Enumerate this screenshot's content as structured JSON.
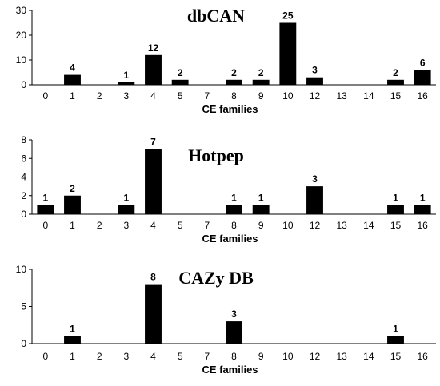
{
  "chart_data": [
    {
      "type": "bar",
      "title": "dbCAN",
      "xlabel": "CE families",
      "ylabel": "",
      "categories": [
        "0",
        "1",
        "2",
        "3",
        "4",
        "5",
        "7",
        "8",
        "9",
        "10",
        "12",
        "13",
        "14",
        "15",
        "16"
      ],
      "values": [
        0,
        4,
        0,
        1,
        12,
        2,
        0,
        2,
        2,
        25,
        3,
        0,
        0,
        2,
        6
      ],
      "data_labels": [
        "",
        "4",
        "",
        "1",
        "12",
        "2",
        "",
        "2",
        "2",
        "25",
        "3",
        "",
        "",
        "2",
        "6"
      ],
      "yticks": [
        "0",
        "10",
        "20",
        "30"
      ],
      "ylim": [
        0,
        30
      ],
      "bar_color": "#000000",
      "grid": false,
      "legend": "none"
    },
    {
      "type": "bar",
      "title": "Hotpep",
      "xlabel": "CE families",
      "ylabel": "",
      "categories": [
        "0",
        "1",
        "2",
        "3",
        "4",
        "5",
        "7",
        "8",
        "9",
        "10",
        "12",
        "13",
        "14",
        "15",
        "16"
      ],
      "values": [
        1,
        2,
        0,
        1,
        7,
        0,
        0,
        1,
        1,
        0,
        3,
        0,
        0,
        1,
        1
      ],
      "data_labels": [
        "1",
        "2",
        "",
        "1",
        "7",
        "",
        "",
        "1",
        "1",
        "",
        "3",
        "",
        "",
        "1",
        "1"
      ],
      "yticks": [
        "0",
        "2",
        "4",
        "6",
        "8"
      ],
      "ylim": [
        0,
        8
      ],
      "bar_color": "#000000",
      "grid": false,
      "legend": "none"
    },
    {
      "type": "bar",
      "title": "CAZy DB",
      "xlabel": "CE families",
      "ylabel": "",
      "categories": [
        "0",
        "1",
        "2",
        "3",
        "4",
        "5",
        "7",
        "8",
        "9",
        "10",
        "12",
        "13",
        "14",
        "15",
        "16"
      ],
      "values": [
        0,
        1,
        0,
        0,
        8,
        0,
        0,
        3,
        0,
        0,
        0,
        0,
        0,
        1,
        0
      ],
      "data_labels": [
        "",
        "1",
        "",
        "",
        "8",
        "",
        "",
        "3",
        "",
        "",
        "",
        "",
        "",
        "1",
        ""
      ],
      "yticks": [
        "0",
        "5",
        "10"
      ],
      "ylim": [
        0,
        10
      ],
      "bar_color": "#000000",
      "grid": false,
      "legend": "none"
    }
  ]
}
